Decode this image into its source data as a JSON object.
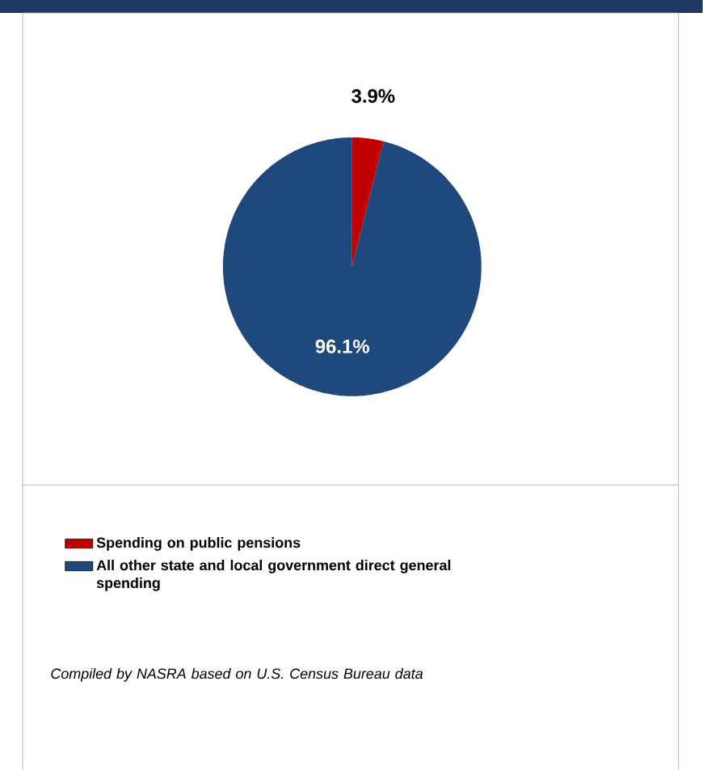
{
  "chart_data": {
    "type": "pie",
    "categories": [
      "Spending on public pensions",
      "All other state and local government direct general spending"
    ],
    "values": [
      3.9,
      96.1
    ],
    "colors": [
      "#c00000",
      "#1f497d"
    ],
    "value_labels": [
      "3.9%",
      "96.1%"
    ],
    "legend": "bottom",
    "annotations": [
      "Compiled by NASRA based on U.S. Census Bureau data"
    ]
  }
}
